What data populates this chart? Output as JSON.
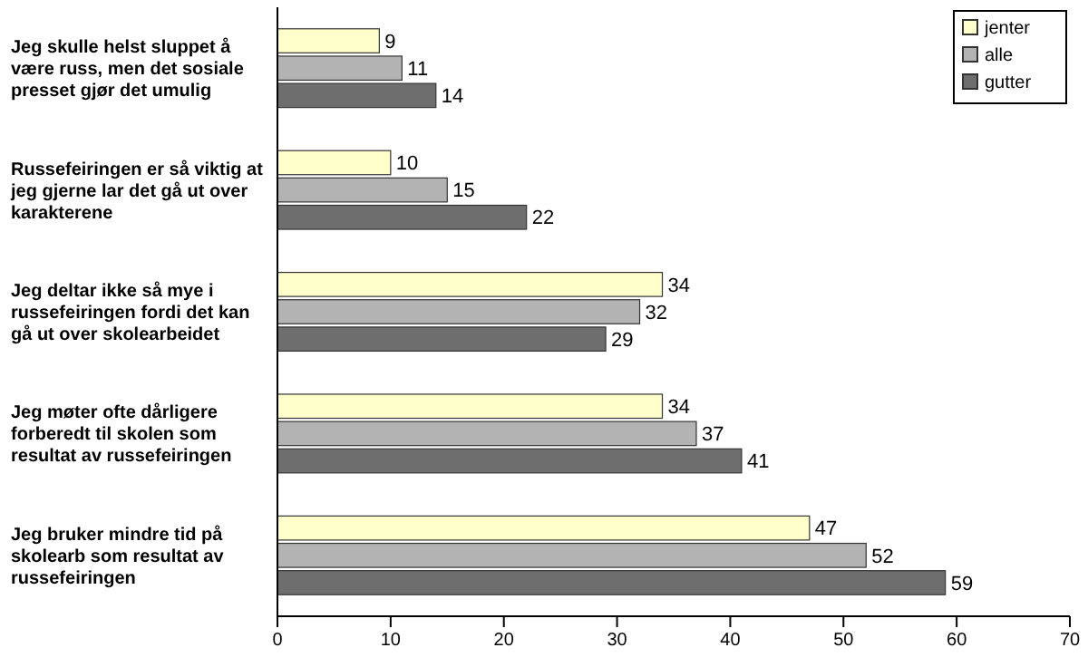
{
  "chart_data": {
    "type": "bar",
    "orientation": "horizontal",
    "categories": [
      "Jeg skulle helst sluppet å være russ, men det sosiale presset gjør det umulig",
      "Russefeiringen er så viktig at jeg gjerne lar det gå ut over karakterene",
      "Jeg deltar ikke så mye i russefeiringen fordi det kan gå ut over skolearbeidet",
      "Jeg møter ofte dårligere forberedt til skolen som resultat av russefeiringen",
      "Jeg bruker mindre tid på skolearb som resultat av russefeiringen"
    ],
    "series": [
      {
        "name": "jenter",
        "color": "#ffffcc",
        "values": [
          9,
          10,
          34,
          34,
          47
        ]
      },
      {
        "name": "alle",
        "color": "#b3b3b3",
        "values": [
          11,
          15,
          32,
          37,
          52
        ]
      },
      {
        "name": "gutter",
        "color": "#6e6e6e",
        "values": [
          14,
          22,
          29,
          41,
          59
        ]
      }
    ],
    "xlim": [
      0,
      70
    ],
    "xticks": [
      0,
      10,
      20,
      30,
      40,
      50,
      60,
      70
    ],
    "data_labels": true,
    "legend": "top right",
    "grid": false
  }
}
